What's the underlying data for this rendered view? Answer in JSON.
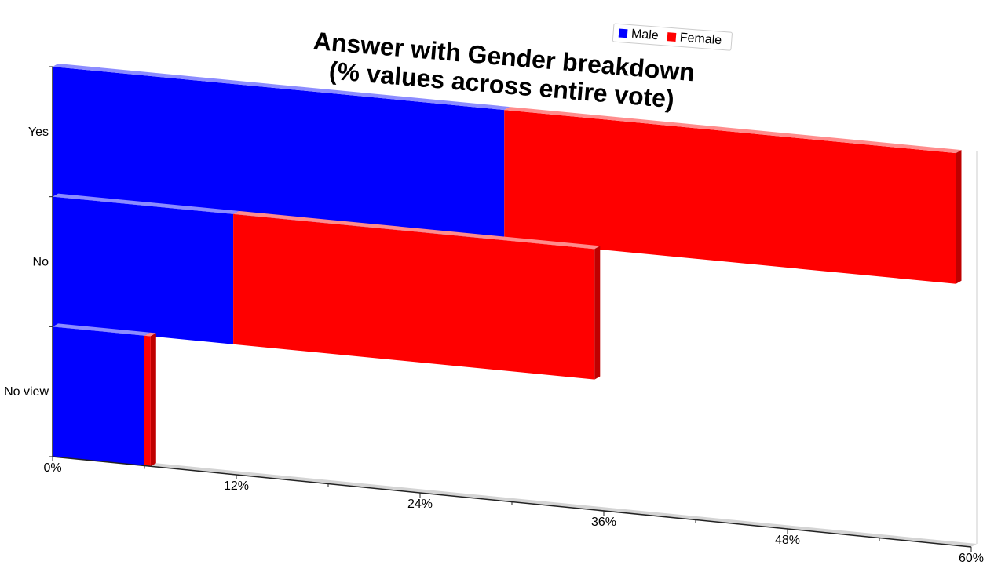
{
  "chart_data": {
    "type": "bar",
    "orientation": "horizontal",
    "stacked": true,
    "title": "Answer with Gender breakdown\n(% values across entire vote)",
    "categories": [
      "Yes",
      "No",
      "No view"
    ],
    "series": [
      {
        "name": "Male",
        "color": "#0000ff",
        "values": [
          29.5,
          11.8,
          6.0
        ]
      },
      {
        "name": "Female",
        "color": "#ff0000",
        "values": [
          29.5,
          23.6,
          0.4
        ]
      }
    ],
    "x_ticks": [
      "0%",
      "12%",
      "24%",
      "36%",
      "48%",
      "60%"
    ],
    "xlim": [
      0,
      60
    ],
    "grid": false,
    "legend_position": "top-right"
  }
}
